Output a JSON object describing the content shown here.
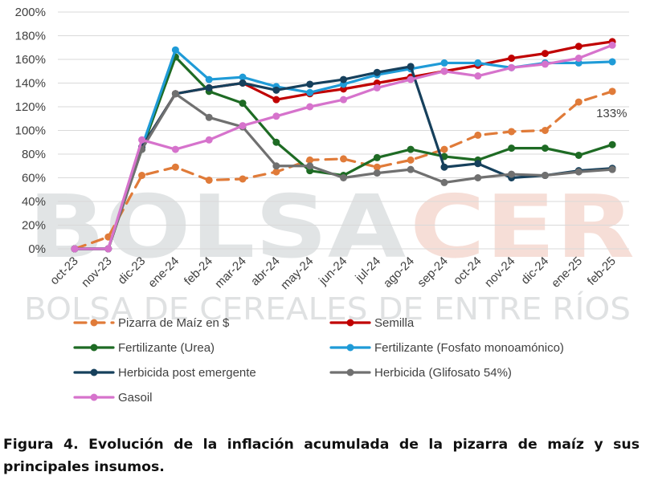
{
  "watermark": {
    "main_left": "BOLSA",
    "main_right": "CER",
    "subtitle": "BOLSA DE CEREALES DE ENTRE RÍOS",
    "color_left": "#c9cdcf",
    "color_right": "#f0c8bd"
  },
  "caption": "Figura 4. Evolución de la inflación acumulada de la pizarra de maíz y sus principales insumos.",
  "chart_data": {
    "type": "line",
    "title": "",
    "xlabel": "",
    "ylabel": "",
    "ylim": [
      0,
      200
    ],
    "y_ticks": [
      "0%",
      "20%",
      "40%",
      "60%",
      "80%",
      "100%",
      "120%",
      "140%",
      "160%",
      "180%",
      "200%"
    ],
    "gridlines": true,
    "legend_position": "bottom",
    "categories": [
      "oct-23",
      "nov-23",
      "dic-23",
      "ene-24",
      "feb-24",
      "mar-24",
      "abr-24",
      "may-24",
      "jun-24",
      "jul-24",
      "ago-24",
      "sep-24",
      "oct-24",
      "nov-24",
      "dic-24",
      "ene-25",
      "feb-25"
    ],
    "annotation": {
      "series": "Pizarra de Maíz en $",
      "text": "133%"
    },
    "series": [
      {
        "name": "Pizarra de Maíz en $",
        "color": "#e07b39",
        "dashed": true,
        "values": [
          0,
          10,
          62,
          69,
          58,
          59,
          65,
          75,
          76,
          69,
          75,
          84,
          96,
          99,
          100,
          124,
          133
        ]
      },
      {
        "name": "Semilla",
        "color": "#c00000",
        "dashed": false,
        "values": [
          0,
          0,
          86,
          131,
          136,
          140,
          126,
          131,
          135,
          140,
          145,
          150,
          155,
          161,
          165,
          171,
          175
        ]
      },
      {
        "name": "Fertilizante (Urea)",
        "color": "#1e6b24",
        "dashed": false,
        "values": [
          0,
          0,
          84,
          162,
          133,
          123,
          90,
          66,
          62,
          77,
          84,
          78,
          75,
          85,
          85,
          79,
          88
        ]
      },
      {
        "name": "Fertilizante (Fosfato monoamónico)",
        "color": "#1f9bd7",
        "dashed": false,
        "values": [
          0,
          0,
          86,
          168,
          143,
          145,
          137,
          132,
          139,
          147,
          152,
          157,
          157,
          153,
          157,
          157,
          158
        ]
      },
      {
        "name": "Herbicida post emergente",
        "color": "#16405c",
        "dashed": false,
        "values": [
          0,
          0,
          86,
          131,
          136,
          140,
          134,
          139,
          143,
          149,
          154,
          69,
          72,
          60,
          62,
          66,
          68
        ]
      },
      {
        "name": "Herbicida (Glifosato 54%)",
        "color": "#707070",
        "dashed": false,
        "values": [
          0,
          0,
          84,
          131,
          111,
          103,
          70,
          70,
          60,
          64,
          67,
          56,
          60,
          63,
          62,
          65,
          67
        ]
      },
      {
        "name": "Gasoil",
        "color": "#d673cc",
        "dashed": false,
        "values": [
          0,
          0,
          92,
          84,
          92,
          104,
          112,
          120,
          126,
          136,
          143,
          150,
          146,
          153,
          156,
          161,
          172
        ]
      }
    ]
  }
}
